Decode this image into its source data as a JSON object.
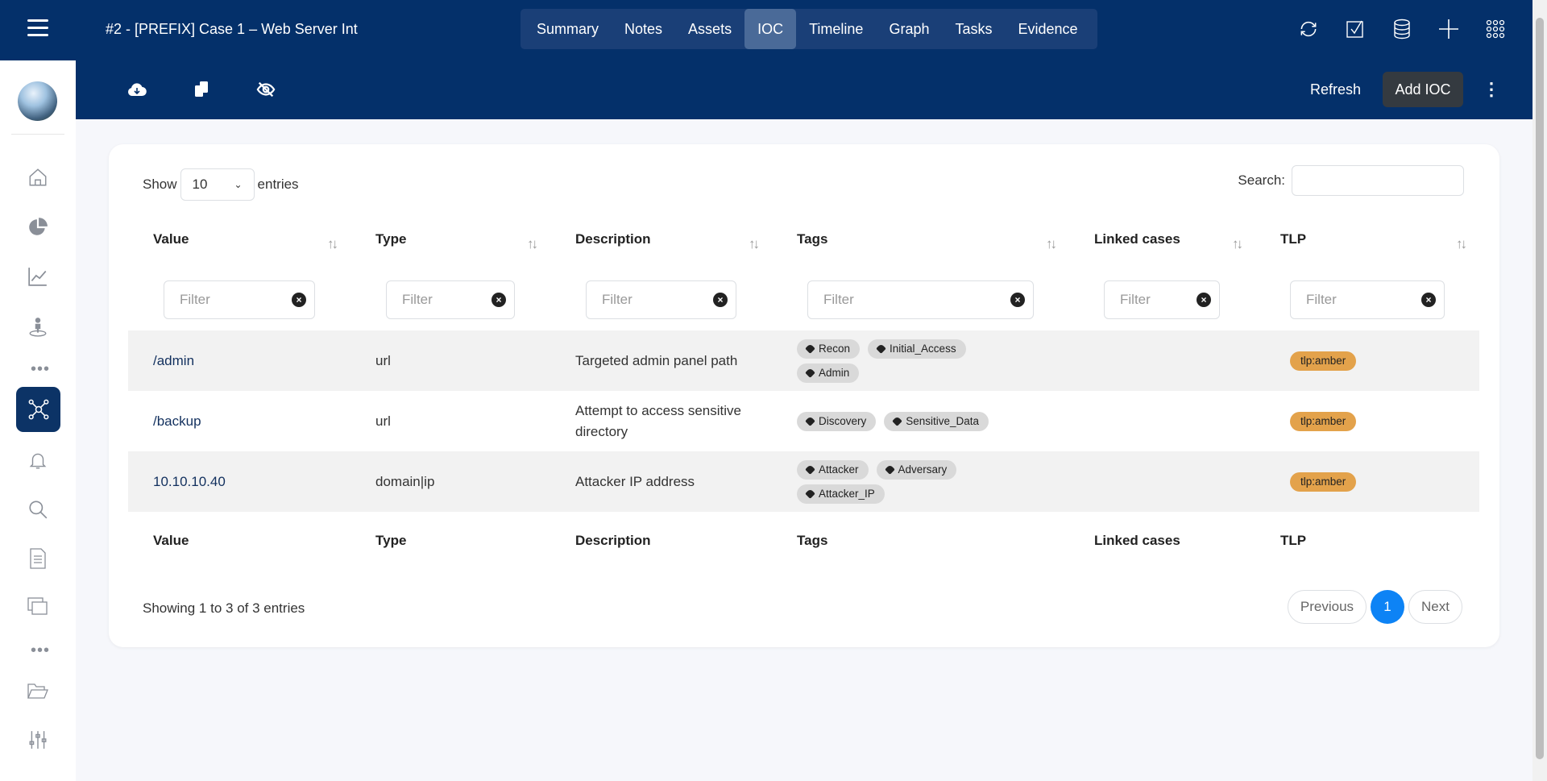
{
  "header": {
    "title": "#2 - [PREFIX] Case 1 – Web Server Int",
    "tabs": [
      "Summary",
      "Notes",
      "Assets",
      "IOC",
      "Timeline",
      "Graph",
      "Tasks",
      "Evidence"
    ],
    "active_tab": "IOC",
    "icons": [
      "refresh-icon",
      "checkbox-icon",
      "database-icon",
      "plus-icon",
      "grid-icon"
    ]
  },
  "toolbar": {
    "icons": [
      "cloud-download-icon",
      "copy-icon",
      "eye-slash-icon"
    ],
    "refresh": "Refresh",
    "add": "Add IOC"
  },
  "table": {
    "show_label": "Show",
    "entries_value": "10",
    "entries_label": "entries",
    "search_label": "Search:",
    "columns": [
      "Value",
      "Type",
      "Description",
      "Tags",
      "Linked cases",
      "TLP"
    ],
    "filter_placeholder": "Filter",
    "rows": [
      {
        "value": "/admin",
        "type": "url",
        "description": "Targeted admin panel path",
        "tags": [
          "Recon",
          "Initial_Access",
          "Admin"
        ],
        "linked": "",
        "tlp": "tlp:amber"
      },
      {
        "value": "/backup",
        "type": "url",
        "description": "Attempt to access sensitive directory",
        "tags": [
          "Discovery",
          "Sensitive_Data"
        ],
        "linked": "",
        "tlp": "tlp:amber"
      },
      {
        "value": "10.10.10.40",
        "type": "domain|ip",
        "description": "Attacker IP address",
        "tags": [
          "Attacker",
          "Adversary",
          "Attacker_IP"
        ],
        "linked": "",
        "tlp": "tlp:amber"
      }
    ],
    "info": "Showing 1 to 3 of 3 entries",
    "pager": {
      "previous": "Previous",
      "current": "1",
      "next": "Next"
    }
  },
  "colors": {
    "navy": "#04306a",
    "tlp_amber": "#e3a24b",
    "page_active": "#0d83f5"
  }
}
